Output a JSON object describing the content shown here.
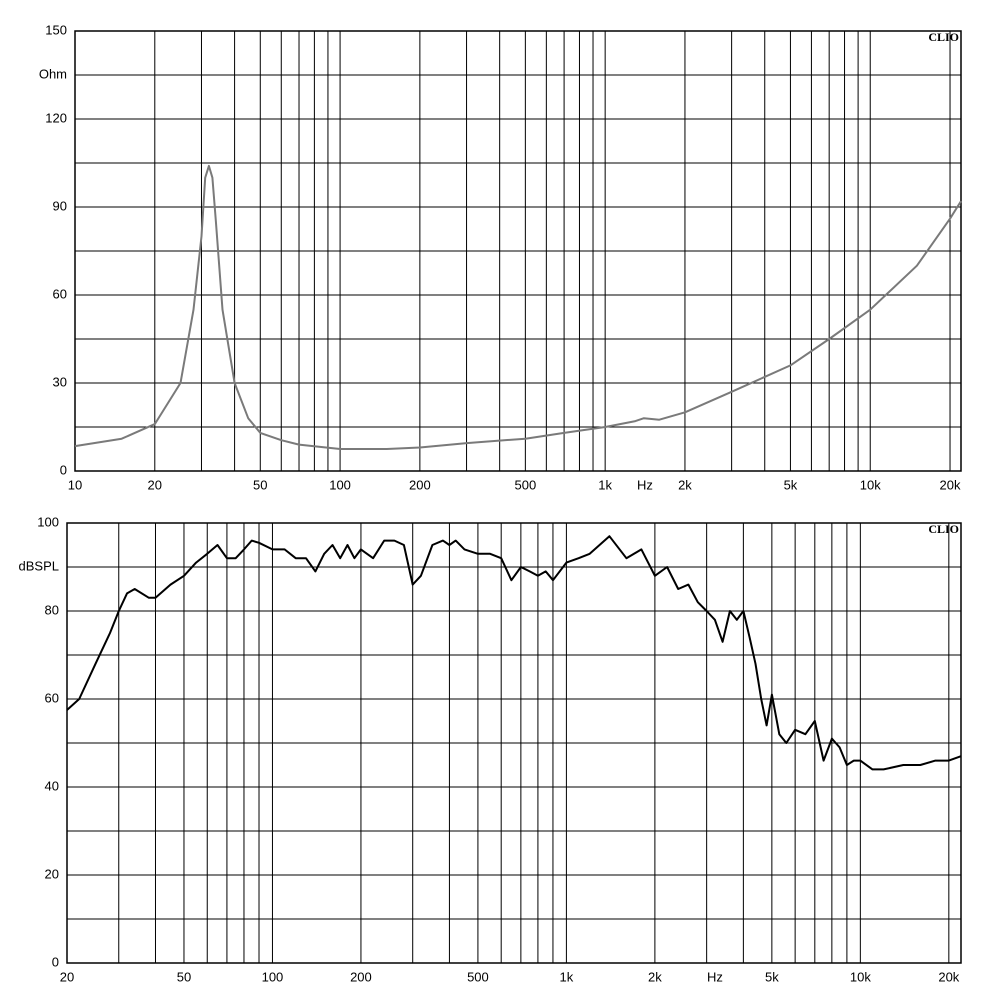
{
  "chart_data": [
    {
      "type": "line",
      "xscale": "log",
      "grid": true,
      "color": "#7a7a7a",
      "brand": "CLIO",
      "y_label": "Ohm",
      "x_label": "Hz",
      "xlim": [
        10,
        22000
      ],
      "ylim": [
        0,
        150
      ],
      "xticks": [
        10,
        20,
        50,
        100,
        200,
        500,
        {
          "value": 1000,
          "label": "1k"
        },
        {
          "value": 2000,
          "label": "2k"
        },
        {
          "value": 5000,
          "label": "5k"
        },
        {
          "value": 10000,
          "label": "10k"
        },
        {
          "value": 20000,
          "label": "20k"
        }
      ],
      "minor_xticks": [
        30,
        40,
        60,
        70,
        80,
        90,
        300,
        400,
        600,
        700,
        800,
        900,
        3000,
        4000,
        6000,
        7000,
        8000,
        9000
      ],
      "yticks": [
        0,
        30,
        60,
        90,
        120,
        150
      ],
      "minor_yticks": [
        15,
        45,
        75,
        105,
        135
      ],
      "x": [
        10,
        15,
        20,
        25,
        28,
        30,
        31,
        32,
        33,
        34,
        36,
        40,
        45,
        50,
        60,
        70,
        100,
        150,
        200,
        300,
        500,
        700,
        1000,
        1300,
        1400,
        1600,
        2000,
        3000,
        5000,
        7000,
        10000,
        15000,
        20000,
        22000
      ],
      "values": [
        8.5,
        11,
        16,
        30,
        55,
        80,
        100,
        104,
        100,
        85,
        55,
        30,
        18,
        13,
        10.5,
        9,
        7.5,
        7.5,
        8,
        9.5,
        11,
        13,
        15,
        17,
        18,
        17.5,
        20,
        27,
        36,
        45,
        55,
        70,
        86,
        92
      ]
    },
    {
      "type": "line",
      "xscale": "log",
      "grid": true,
      "color": "#000000",
      "brand": "CLIO",
      "y_label": "dBSPL",
      "x_label": "Hz",
      "xlim": [
        20,
        22000
      ],
      "ylim": [
        0,
        100
      ],
      "xticks": [
        20,
        50,
        100,
        200,
        500,
        {
          "value": 1000,
          "label": "1k"
        },
        {
          "value": 2000,
          "label": "2k"
        },
        {
          "value": 5000,
          "label": "5k"
        },
        {
          "value": 10000,
          "label": "10k"
        },
        {
          "value": 20000,
          "label": "20k"
        }
      ],
      "minor_xticks": [
        30,
        40,
        60,
        70,
        80,
        90,
        300,
        400,
        600,
        700,
        800,
        900,
        3000,
        4000,
        6000,
        7000,
        8000,
        9000
      ],
      "yticks": [
        0,
        20,
        40,
        60,
        80,
        100
      ],
      "minor_yticks": [
        10,
        30,
        50,
        70,
        90
      ],
      "x": [
        20,
        22,
        25,
        28,
        30,
        32,
        34,
        38,
        40,
        45,
        50,
        55,
        60,
        65,
        70,
        75,
        80,
        85,
        90,
        100,
        110,
        120,
        130,
        140,
        150,
        160,
        170,
        180,
        190,
        200,
        220,
        240,
        260,
        280,
        300,
        320,
        350,
        380,
        400,
        420,
        450,
        500,
        550,
        600,
        650,
        700,
        750,
        800,
        850,
        900,
        1000,
        1100,
        1200,
        1400,
        1600,
        1800,
        2000,
        2200,
        2400,
        2600,
        2800,
        3000,
        3200,
        3400,
        3600,
        3800,
        4000,
        4200,
        4400,
        4600,
        4800,
        5000,
        5300,
        5600,
        6000,
        6500,
        7000,
        7500,
        8000,
        8500,
        9000,
        9500,
        10000,
        11000,
        12000,
        14000,
        16000,
        18000,
        20000,
        22000
      ],
      "values": [
        57.5,
        60,
        68,
        75,
        80,
        84,
        85,
        83,
        83,
        86,
        88,
        91,
        93,
        95,
        92,
        92,
        94,
        96,
        95.5,
        94,
        94,
        92,
        92,
        89,
        93,
        95,
        92,
        95,
        92,
        94,
        92,
        96,
        96,
        95,
        86,
        88,
        95,
        96,
        95,
        96,
        94,
        93,
        93,
        92,
        87,
        90,
        89,
        88,
        89,
        87,
        91,
        92,
        93,
        97,
        92,
        94,
        88,
        90,
        85,
        86,
        82,
        80,
        78,
        73,
        80,
        78,
        80,
        74,
        68,
        60,
        54,
        61,
        52,
        50,
        53,
        52,
        55,
        46,
        51,
        49,
        45,
        46,
        46,
        44,
        44,
        45,
        45,
        46,
        46,
        47
      ]
    }
  ]
}
